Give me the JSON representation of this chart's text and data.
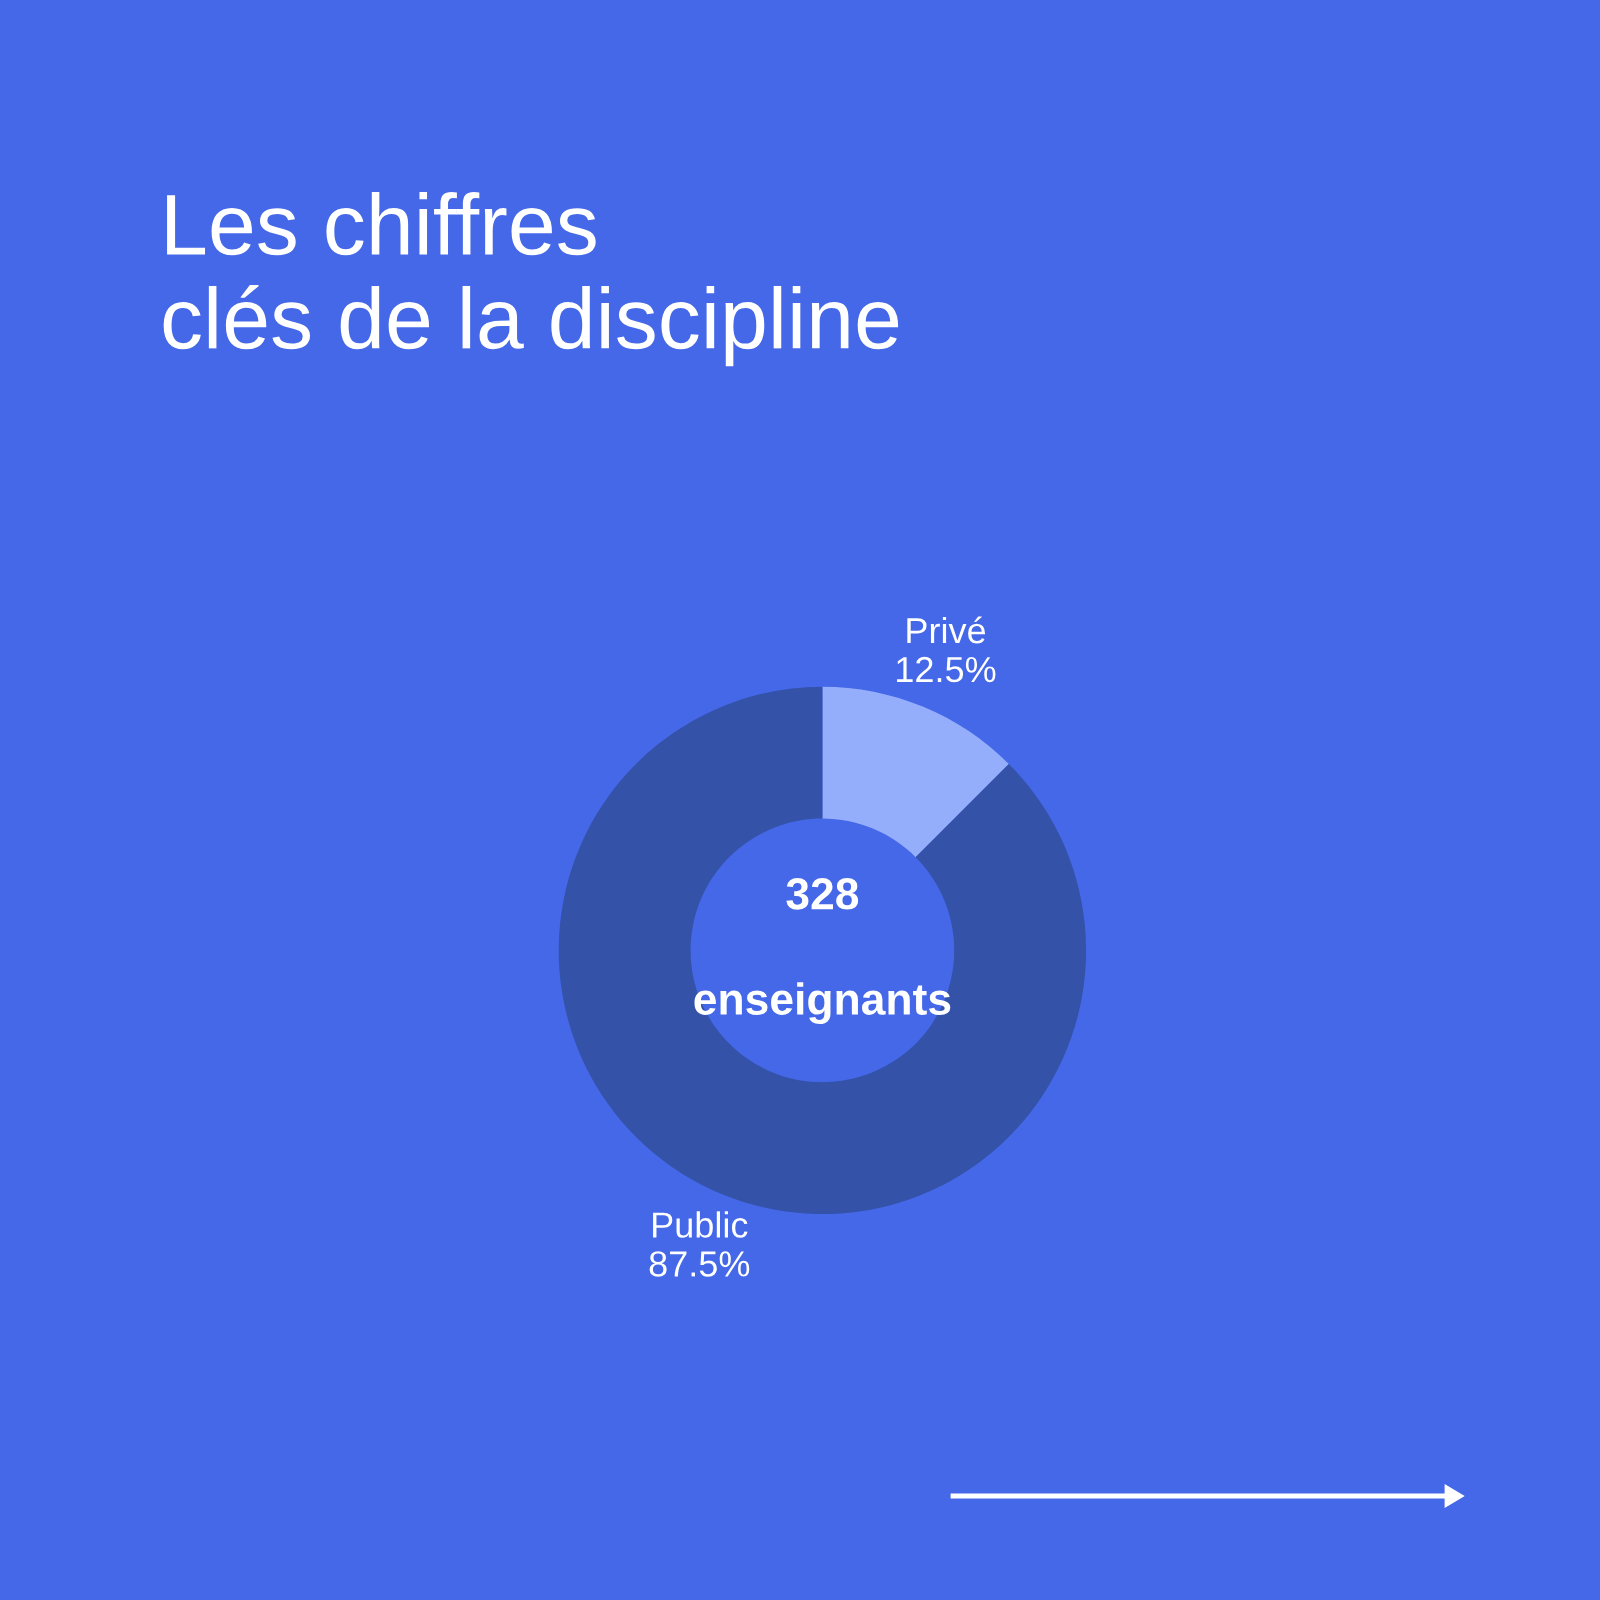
{
  "chart_data": {
    "type": "donut",
    "title": "Les chiffres\nclés de la discipline",
    "categories": [
      "Privé",
      "Public"
    ],
    "values": [
      12.5,
      87.5
    ],
    "value_labels": [
      "12.5%",
      "87.5%"
    ],
    "colors": [
      "#94aefc",
      "#3452a8"
    ],
    "annotations": [
      "328",
      "enseignants"
    ]
  }
}
